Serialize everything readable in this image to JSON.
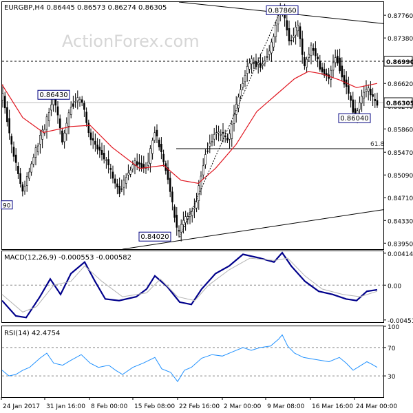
{
  "chart_data": [
    {
      "type": "candlestick",
      "title": "EURGBP,H4  0.86445 0.86573 0.86274 0.86305",
      "watermark": "ActionForex.com",
      "ylim": [
        0.8385,
        0.8798
      ],
      "y_ticks": [
        "0.87760",
        "0.87380",
        "0.87000",
        "0.86620",
        "0.86240",
        "0.85860",
        "0.85470",
        "0.85090",
        "0.84710",
        "0.84330",
        "0.83950"
      ],
      "x_ticks": [
        "24 Jan 2017",
        "31 Jan 16:00",
        "8 Feb 00:00",
        "15 Feb 08:00",
        "22 Feb 16:00",
        "2 Mar 00:00",
        "9 Mar 08:00",
        "16 Mar 16:00",
        "24 Mar 00:00"
      ],
      "price_path": [
        [
          0,
          0.865
        ],
        [
          14,
          0.8555
        ],
        [
          30,
          0.8482
        ],
        [
          45,
          0.854
        ],
        [
          62,
          0.859
        ],
        [
          75,
          0.864
        ],
        [
          88,
          0.8565
        ],
        [
          100,
          0.8625
        ],
        [
          115,
          0.864
        ],
        [
          128,
          0.857
        ],
        [
          150,
          0.8535
        ],
        [
          170,
          0.848
        ],
        [
          190,
          0.853
        ],
        [
          210,
          0.852
        ],
        [
          222,
          0.8585
        ],
        [
          240,
          0.851
        ],
        [
          255,
          0.841
        ],
        [
          268,
          0.844
        ],
        [
          280,
          0.845
        ],
        [
          295,
          0.8545
        ],
        [
          310,
          0.858
        ],
        [
          330,
          0.857
        ],
        [
          345,
          0.865
        ],
        [
          360,
          0.87
        ],
        [
          375,
          0.869
        ],
        [
          390,
          0.872
        ],
        [
          400,
          0.877
        ],
        [
          407,
          0.8786
        ],
        [
          418,
          0.873
        ],
        [
          430,
          0.876
        ],
        [
          438,
          0.869
        ],
        [
          450,
          0.8725
        ],
        [
          462,
          0.869
        ],
        [
          475,
          0.867
        ],
        [
          485,
          0.871
        ],
        [
          495,
          0.867
        ],
        [
          505,
          0.864
        ],
        [
          512,
          0.8605
        ],
        [
          520,
          0.863
        ],
        [
          530,
          0.8655
        ],
        [
          540,
          0.8632
        ],
        [
          545,
          0.863
        ]
      ],
      "moving_average": [
        [
          0,
          0.866
        ],
        [
          30,
          0.8605
        ],
        [
          60,
          0.858
        ],
        [
          100,
          0.859
        ],
        [
          128,
          0.8592
        ],
        [
          160,
          0.8555
        ],
        [
          200,
          0.852
        ],
        [
          235,
          0.8525
        ],
        [
          260,
          0.85
        ],
        [
          285,
          0.8495
        ],
        [
          310,
          0.852
        ],
        [
          340,
          0.856
        ],
        [
          370,
          0.8615
        ],
        [
          400,
          0.8645
        ],
        [
          425,
          0.867
        ],
        [
          445,
          0.8682
        ],
        [
          465,
          0.8678
        ],
        [
          490,
          0.8668
        ],
        [
          515,
          0.8655
        ],
        [
          545,
          0.8662
        ]
      ],
      "annotations": [
        {
          "label": "0.87860",
          "price": 0.8786,
          "x": 407
        },
        {
          "label": "0.86430",
          "price": 0.8643,
          "x": 75
        },
        {
          "label": "0.86040",
          "price": 0.8604,
          "x": 512
        },
        {
          "label": "0.84020",
          "price": 0.8402,
          "x": 222
        }
      ],
      "horizontal_levels": [
        {
          "price": 0.8699,
          "label": "0.86990",
          "style": "dashed",
          "color": "#000000"
        },
        {
          "price": 0.863,
          "label": "0.86305",
          "style": "solid",
          "color": "#bdbdbd"
        }
      ],
      "fib_level": {
        "price": 0.8553,
        "label": "61.8"
      },
      "left_cut_label": "90",
      "trendlines": [
        {
          "from": [
            257,
            0.8798
          ],
          "to": [
            556,
            0.8762
          ]
        },
        {
          "from": [
            175,
            0.8385
          ],
          "to": [
            556,
            0.8451
          ]
        },
        {
          "from": [
            258,
            0.8405
          ],
          "to": [
            405,
            0.8785
          ],
          "style": "dotted"
        }
      ],
      "colors": {
        "ma": "#e0141e",
        "candle": "#000000"
      }
    },
    {
      "type": "line",
      "title": "MACD(12,26,9) -0.000553 -0.000582",
      "ylim": [
        -0.0048,
        0.0044
      ],
      "y_ticks": [
        "0.004148",
        "0.00",
        "-0.004516"
      ],
      "zero_line": 0.0,
      "series": [
        {
          "values": [
            [
              0,
              -0.002
            ],
            [
              20,
              -0.004
            ],
            [
              35,
              -0.0042
            ],
            [
              55,
              -0.0015
            ],
            [
              70,
              0.0008
            ],
            [
              85,
              -0.0012
            ],
            [
              100,
              0.0015
            ],
            [
              120,
              0.003
            ],
            [
              135,
              0.0005
            ],
            [
              150,
              -0.0018
            ],
            [
              170,
              -0.002
            ],
            [
              195,
              -0.0015
            ],
            [
              210,
              -0.0005
            ],
            [
              222,
              0.0012
            ],
            [
              240,
              -0.0002
            ],
            [
              258,
              -0.0022
            ],
            [
              275,
              -0.0025
            ],
            [
              290,
              -0.0005
            ],
            [
              310,
              0.0015
            ],
            [
              330,
              0.0025
            ],
            [
              350,
              0.004
            ],
            [
              375,
              0.0035
            ],
            [
              395,
              0.003
            ],
            [
              407,
              0.0042
            ],
            [
              420,
              0.0025
            ],
            [
              440,
              0.0005
            ],
            [
              460,
              -0.0008
            ],
            [
              480,
              -0.0012
            ],
            [
              500,
              -0.0018
            ],
            [
              515,
              -0.002
            ],
            [
              530,
              -0.0008
            ],
            [
              545,
              -0.0006
            ]
          ],
          "color": "#00008b"
        },
        {
          "values": [
            [
              0,
              -0.0012
            ],
            [
              30,
              -0.0035
            ],
            [
              50,
              -0.0028
            ],
            [
              75,
              0.0
            ],
            [
              100,
              0.0005
            ],
            [
              120,
              0.0025
            ],
            [
              145,
              0.0005
            ],
            [
              175,
              -0.0015
            ],
            [
              210,
              -0.001
            ],
            [
              230,
              0.0008
            ],
            [
              255,
              -0.0015
            ],
            [
              280,
              -0.002
            ],
            [
              300,
              0.0
            ],
            [
              330,
              0.002
            ],
            [
              360,
              0.0035
            ],
            [
              395,
              0.0032
            ],
            [
              415,
              0.0035
            ],
            [
              440,
              0.0012
            ],
            [
              465,
              -0.0005
            ],
            [
              495,
              -0.0012
            ],
            [
              520,
              -0.0015
            ],
            [
              545,
              -0.0008
            ]
          ],
          "color": "#b3b3b3"
        }
      ]
    },
    {
      "type": "line",
      "title": "RSI(14) 42.4754",
      "ylim": [
        0,
        100
      ],
      "y_ticks": [
        "100",
        "70",
        "30",
        "0"
      ],
      "levels": [
        70,
        30
      ],
      "series": [
        {
          "values": [
            [
              0,
              38
            ],
            [
              10,
              30
            ],
            [
              20,
              32
            ],
            [
              30,
              38
            ],
            [
              40,
              42
            ],
            [
              55,
              55
            ],
            [
              65,
              62
            ],
            [
              75,
              48
            ],
            [
              88,
              45
            ],
            [
              100,
              52
            ],
            [
              115,
              60
            ],
            [
              128,
              48
            ],
            [
              140,
              42
            ],
            [
              155,
              45
            ],
            [
              165,
              38
            ],
            [
              175,
              32
            ],
            [
              190,
              42
            ],
            [
              205,
              48
            ],
            [
              222,
              56
            ],
            [
              232,
              40
            ],
            [
              245,
              35
            ],
            [
              255,
              22
            ],
            [
              265,
              38
            ],
            [
              275,
              42
            ],
            [
              290,
              55
            ],
            [
              305,
              60
            ],
            [
              320,
              58
            ],
            [
              335,
              64
            ],
            [
              350,
              70
            ],
            [
              362,
              66
            ],
            [
              375,
              70
            ],
            [
              390,
              72
            ],
            [
              402,
              82
            ],
            [
              407,
              88
            ],
            [
              415,
              72
            ],
            [
              425,
              62
            ],
            [
              438,
              56
            ],
            [
              450,
              54
            ],
            [
              462,
              52
            ],
            [
              475,
              50
            ],
            [
              490,
              56
            ],
            [
              500,
              48
            ],
            [
              510,
              38
            ],
            [
              520,
              44
            ],
            [
              530,
              50
            ],
            [
              538,
              46
            ],
            [
              545,
              42
            ]
          ],
          "color": "#1e90ff"
        }
      ]
    }
  ]
}
